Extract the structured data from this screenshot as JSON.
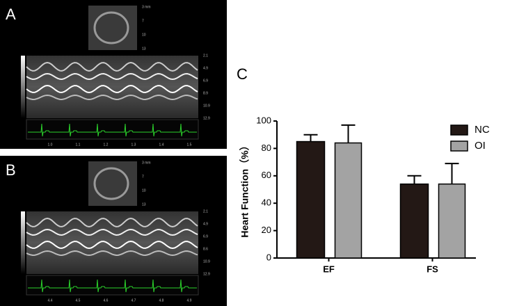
{
  "panels": [
    {
      "label": "A",
      "inset_labels": [
        "3 mm",
        "7",
        "10",
        "13"
      ],
      "depth_labels": [
        "2.1",
        "4.9",
        "6.9",
        "8.9",
        "10.9",
        "12.9"
      ],
      "time_labels": [
        "1.0",
        "1.1",
        "1.2",
        "1.3",
        "1.4",
        "1.5"
      ]
    },
    {
      "label": "B",
      "inset_labels": [
        "3 mm",
        "7",
        "10",
        "13"
      ],
      "depth_labels": [
        "2.1",
        "4.9",
        "6.9",
        "8.6",
        "10.9",
        "12.9"
      ],
      "time_labels": [
        "4.4",
        "4.5",
        "4.6",
        "4.7",
        "4.8",
        "4.9"
      ]
    }
  ],
  "chart_data": {
    "type": "bar",
    "panel_label": "C",
    "y_label": "Heart Function（%）",
    "categories": [
      "EF",
      "FS"
    ],
    "series": [
      {
        "name": "NC",
        "color": "#231815",
        "values": [
          85,
          54
        ],
        "errors": [
          5,
          6
        ]
      },
      {
        "name": "OI",
        "color": "#a3a3a3",
        "values": [
          84,
          54
        ],
        "errors": [
          13,
          15
        ]
      }
    ],
    "ylim": [
      0,
      100
    ],
    "yticks": [
      0,
      20,
      40,
      60,
      80,
      100
    ],
    "legend": "upper right"
  }
}
